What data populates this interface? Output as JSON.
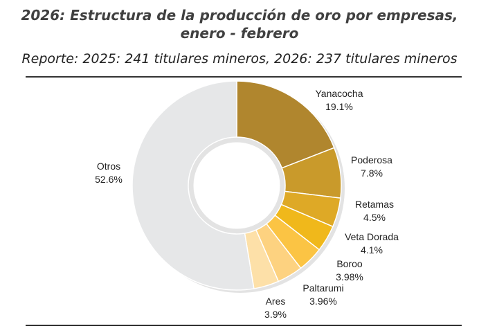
{
  "chart_data": {
    "type": "pie",
    "donut": true,
    "title": "2026: Estructura de la producción de oro por empresas,",
    "title_line2": "enero - febrero",
    "subtitle": "Reporte: 2025: 241 titulares mineros, 2026: 237 titulares mineros",
    "slices": [
      {
        "label": "Yanacocha",
        "value": 19.1,
        "display": "19.1%",
        "color": "#b0862e"
      },
      {
        "label": "Poderosa",
        "value": 7.8,
        "display": "7.8%",
        "color": "#c99a2b"
      },
      {
        "label": "Retamas",
        "value": 4.5,
        "display": "4.5%",
        "color": "#dea926"
      },
      {
        "label": "Veta Dorada",
        "value": 4.1,
        "display": "4.1%",
        "color": "#f0b81b"
      },
      {
        "label": "Boroo",
        "value": 3.98,
        "display": "3.98%",
        "color": "#fbc444"
      },
      {
        "label": "Paltarumi",
        "value": 3.96,
        "display": "3.96%",
        "color": "#fdd280"
      },
      {
        "label": "Ares",
        "value": 3.9,
        "display": "3.9%",
        "color": "#fde0a8"
      },
      {
        "label": "Otros",
        "value": 52.6,
        "display": "52.6%",
        "color": "#e6e7e8"
      }
    ]
  }
}
